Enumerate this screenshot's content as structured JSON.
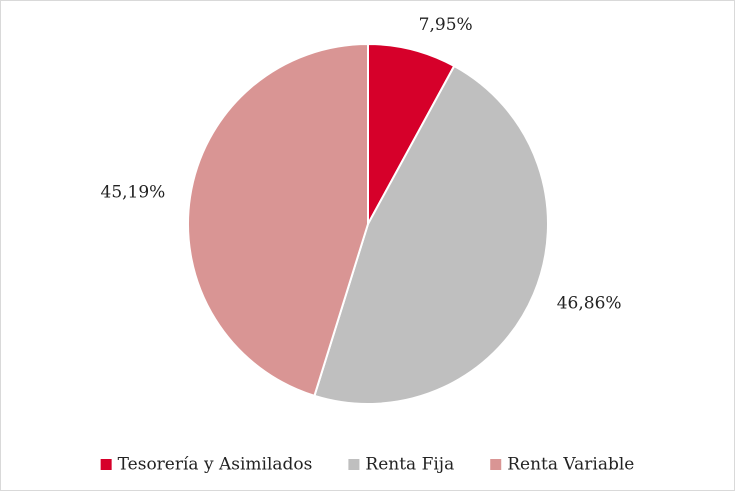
{
  "chart_data": {
    "type": "pie",
    "categories": [
      "Tesorería y Asimilados",
      "Renta Fija",
      "Renta Variable"
    ],
    "values": [
      7.95,
      46.86,
      45.19
    ],
    "value_labels": [
      "7,95%",
      "46,86%",
      "45,19%"
    ],
    "colors": [
      "#d6002a",
      "#bfbfbf",
      "#d99594"
    ],
    "legend": "bottom"
  }
}
